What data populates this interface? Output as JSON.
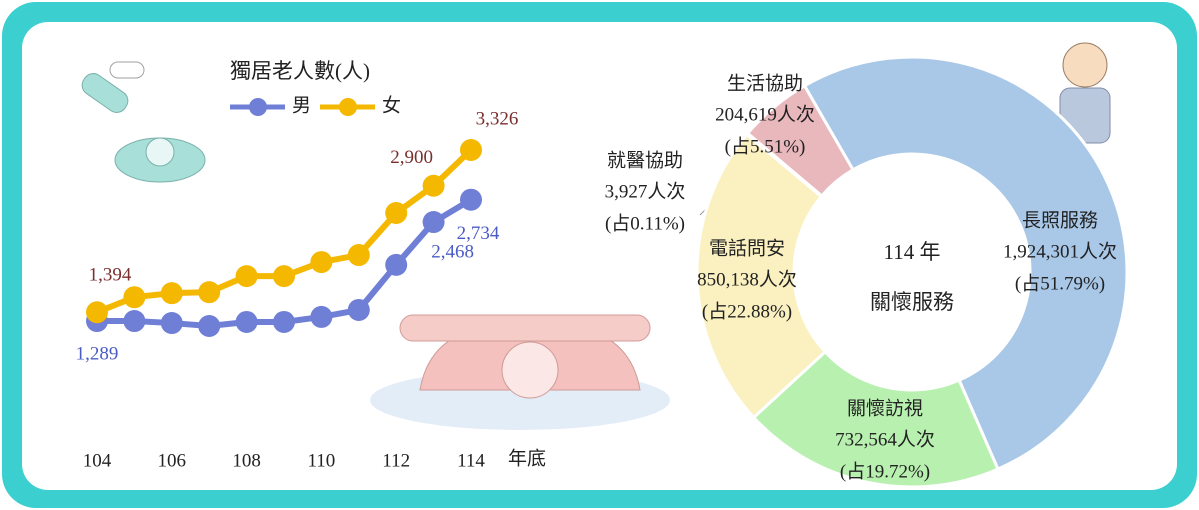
{
  "chart_data": [
    {
      "type": "line",
      "title": "獨居老人數(人)",
      "x": [
        104,
        105,
        106,
        107,
        108,
        109,
        110,
        111,
        112,
        113,
        114
      ],
      "xlim": [
        104,
        114
      ],
      "xticks": [
        104,
        106,
        108,
        110,
        112,
        114
      ],
      "xlabel": "年底",
      "series": [
        {
          "name": "男",
          "color": "#6f7fd6",
          "label_color": "#4a5cc4",
          "values": [
            1289,
            1289,
            1265,
            1230,
            1278,
            1278,
            1338,
            1421,
            1958,
            2468,
            2734
          ],
          "value_labels": [
            "1,289",
            null,
            null,
            null,
            null,
            null,
            null,
            null,
            null,
            "2,468",
            "2,734"
          ]
        },
        {
          "name": "女",
          "color": "#f5b800",
          "label_color": "#7a2e2e",
          "values": [
            1394,
            1573,
            1621,
            1633,
            1824,
            1824,
            1991,
            2075,
            2576,
            2900,
            3326
          ],
          "value_labels": [
            "1,394",
            null,
            null,
            null,
            null,
            null,
            null,
            null,
            null,
            "2,900",
            "3,326"
          ]
        }
      ]
    },
    {
      "type": "donut",
      "title": [
        "114 年",
        "關懷服務"
      ],
      "categories": [
        "長照服務",
        "關懷訪視",
        "電話問安",
        "就醫協助",
        "生活協助"
      ],
      "values": [
        1924301,
        732564,
        850138,
        3927,
        204619
      ],
      "value_labels": [
        "1,924,301人次",
        "732,564人次",
        "850,138人次",
        "3,927人次",
        "204,619人次"
      ],
      "percent_labels": [
        "(占51.79%)",
        "(占19.72%)",
        "(占22.88%)",
        "(占0.11%)",
        "(占5.51%)"
      ],
      "colors": [
        "#a9c8e8",
        "#b8f0b0",
        "#faf0c0",
        "#c8c8d0",
        "#e8b8bc"
      ]
    }
  ]
}
